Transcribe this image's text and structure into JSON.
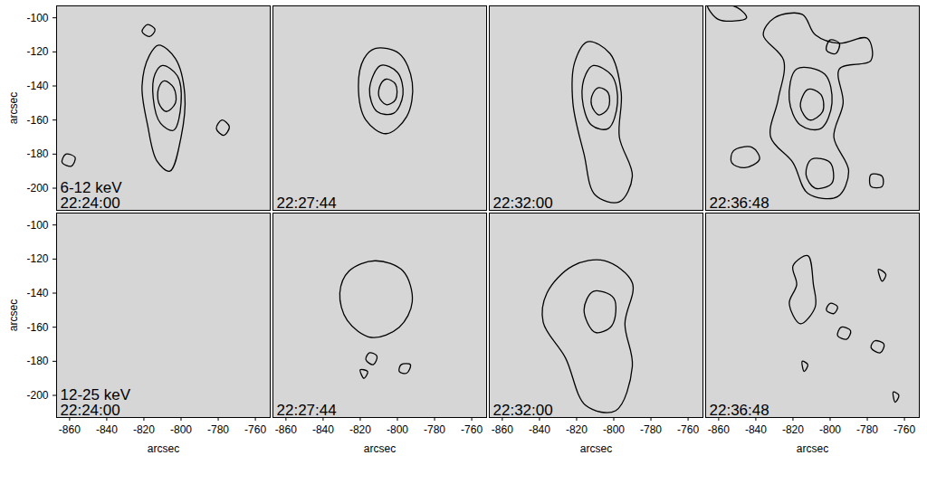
{
  "chart_data": [
    {
      "type": "contour",
      "annotations": [
        "6-12 keV",
        "22:24:00"
      ],
      "ylabel": "arcsec",
      "tick_labels": "y",
      "xlim": [
        -867,
        -752
      ],
      "ylim": [
        -213,
        -93
      ],
      "xticks": [
        -860,
        -840,
        -820,
        -800,
        -780,
        -760
      ],
      "yticks": [
        -100,
        -120,
        -140,
        -160,
        -180,
        -200
      ],
      "contours": [
        [
          [
            -812,
            -116
          ],
          [
            -803,
            -124
          ],
          [
            -798,
            -145
          ],
          [
            -800,
            -170
          ],
          [
            -806,
            -190
          ],
          [
            -813,
            -184
          ],
          [
            -818,
            -163
          ],
          [
            -821,
            -140
          ],
          [
            -817,
            -122
          ]
        ],
        [
          [
            -810,
            -128
          ],
          [
            -802,
            -134
          ],
          [
            -800,
            -150
          ],
          [
            -804,
            -166
          ],
          [
            -811,
            -162
          ],
          [
            -815,
            -147
          ],
          [
            -814,
            -133
          ]
        ],
        [
          [
            -809,
            -137
          ],
          [
            -804,
            -141
          ],
          [
            -803,
            -150
          ],
          [
            -808,
            -155
          ],
          [
            -812,
            -150
          ],
          [
            -812,
            -141
          ]
        ],
        [
          [
            -818,
            -104
          ],
          [
            -814,
            -107
          ],
          [
            -817,
            -111
          ],
          [
            -821,
            -108
          ]
        ],
        [
          [
            -778,
            -160
          ],
          [
            -774,
            -164
          ],
          [
            -777,
            -169
          ],
          [
            -781,
            -165
          ]
        ],
        [
          [
            -862,
            -180
          ],
          [
            -857,
            -182
          ],
          [
            -859,
            -187
          ],
          [
            -864,
            -185
          ]
        ]
      ]
    },
    {
      "type": "contour",
      "annotations": [
        "22:27:44"
      ],
      "tick_labels": false,
      "xlim": [
        -867,
        -752
      ],
      "ylim": [
        -213,
        -93
      ],
      "xticks": [
        -860,
        -840,
        -820,
        -800,
        -780,
        -760
      ],
      "yticks": [
        -100,
        -120,
        -140,
        -160,
        -180,
        -200
      ],
      "contours": [
        [
          [
            -812,
            -118
          ],
          [
            -799,
            -121
          ],
          [
            -792,
            -138
          ],
          [
            -795,
            -158
          ],
          [
            -806,
            -168
          ],
          [
            -817,
            -160
          ],
          [
            -821,
            -140
          ],
          [
            -818,
            -124
          ]
        ],
        [
          [
            -809,
            -128
          ],
          [
            -800,
            -132
          ],
          [
            -797,
            -145
          ],
          [
            -802,
            -156
          ],
          [
            -811,
            -155
          ],
          [
            -815,
            -142
          ]
        ],
        [
          [
            -806,
            -136
          ],
          [
            -801,
            -139
          ],
          [
            -801,
            -148
          ],
          [
            -806,
            -151
          ],
          [
            -810,
            -146
          ],
          [
            -809,
            -139
          ]
        ]
      ]
    },
    {
      "type": "contour",
      "annotations": [
        "22:32:00"
      ],
      "tick_labels": false,
      "xlim": [
        -867,
        -752
      ],
      "ylim": [
        -213,
        -93
      ],
      "xticks": [
        -860,
        -840,
        -820,
        -800,
        -780,
        -760
      ],
      "yticks": [
        -100,
        -120,
        -140,
        -160,
        -180,
        -200
      ],
      "contours": [
        [
          [
            -814,
            -114
          ],
          [
            -802,
            -121
          ],
          [
            -796,
            -144
          ],
          [
            -797,
            -170
          ],
          [
            -790,
            -193
          ],
          [
            -797,
            -208
          ],
          [
            -810,
            -204
          ],
          [
            -816,
            -180
          ],
          [
            -822,
            -150
          ],
          [
            -821,
            -126
          ]
        ],
        [
          [
            -811,
            -128
          ],
          [
            -801,
            -134
          ],
          [
            -798,
            -150
          ],
          [
            -803,
            -165
          ],
          [
            -812,
            -163
          ],
          [
            -817,
            -147
          ],
          [
            -815,
            -133
          ]
        ],
        [
          [
            -808,
            -141
          ],
          [
            -803,
            -144
          ],
          [
            -803,
            -153
          ],
          [
            -808,
            -157
          ],
          [
            -812,
            -151
          ],
          [
            -811,
            -144
          ]
        ]
      ]
    },
    {
      "type": "contour",
      "annotations": [
        "22:36:48"
      ],
      "tick_labels": false,
      "xlim": [
        -867,
        -752
      ],
      "ylim": [
        -213,
        -93
      ],
      "xticks": [
        -860,
        -840,
        -820,
        -800,
        -780,
        -760
      ],
      "yticks": [
        -100,
        -120,
        -140,
        -160,
        -180,
        -200
      ],
      "contours": [
        [
          [
            -830,
            -100
          ],
          [
            -815,
            -98
          ],
          [
            -808,
            -110
          ],
          [
            -795,
            -115
          ],
          [
            -780,
            -112
          ],
          [
            -778,
            -125
          ],
          [
            -795,
            -130
          ],
          [
            -793,
            -150
          ],
          [
            -798,
            -170
          ],
          [
            -790,
            -190
          ],
          [
            -796,
            -205
          ],
          [
            -812,
            -203
          ],
          [
            -820,
            -185
          ],
          [
            -832,
            -170
          ],
          [
            -828,
            -148
          ],
          [
            -825,
            -125
          ],
          [
            -836,
            -110
          ]
        ],
        [
          [
            -818,
            -130
          ],
          [
            -803,
            -133
          ],
          [
            -799,
            -150
          ],
          [
            -805,
            -165
          ],
          [
            -816,
            -163
          ],
          [
            -822,
            -148
          ]
        ],
        [
          [
            -812,
            -142
          ],
          [
            -805,
            -145
          ],
          [
            -804,
            -155
          ],
          [
            -811,
            -160
          ],
          [
            -816,
            -152
          ]
        ],
        [
          [
            -810,
            -183
          ],
          [
            -800,
            -185
          ],
          [
            -799,
            -197
          ],
          [
            -808,
            -200
          ],
          [
            -813,
            -192
          ]
        ],
        [
          [
            -800,
            -113
          ],
          [
            -795,
            -115
          ],
          [
            -797,
            -121
          ],
          [
            -802,
            -119
          ]
        ],
        [
          [
            -852,
            -178
          ],
          [
            -842,
            -176
          ],
          [
            -838,
            -183
          ],
          [
            -846,
            -188
          ],
          [
            -853,
            -185
          ]
        ],
        [
          [
            -778,
            -192
          ],
          [
            -772,
            -193
          ],
          [
            -772,
            -199
          ],
          [
            -778,
            -199
          ]
        ],
        [
          [
            -866,
            -92
          ],
          [
            -850,
            -94
          ],
          [
            -845,
            -100
          ],
          [
            -860,
            -101
          ]
        ]
      ]
    },
    {
      "type": "contour",
      "annotations": [
        "12-25 keV",
        "22:24:00"
      ],
      "xlabel": "arcsec",
      "ylabel": "arcsec",
      "xlim": [
        -867,
        -752
      ],
      "ylim": [
        -213,
        -93
      ],
      "xticks": [
        -860,
        -840,
        -820,
        -800,
        -780,
        -760
      ],
      "yticks": [
        -100,
        -120,
        -140,
        -160,
        -180,
        -200
      ],
      "contours": []
    },
    {
      "type": "contour",
      "annotations": [
        "22:27:44"
      ],
      "xlabel": "arcsec",
      "tick_labels": "x",
      "xlim": [
        -867,
        -752
      ],
      "ylim": [
        -213,
        -93
      ],
      "xticks": [
        -860,
        -840,
        -820,
        -800,
        -780,
        -760
      ],
      "yticks": [
        -100,
        -120,
        -140,
        -160,
        -180,
        -200
      ],
      "contours": [
        [
          [
            -826,
            -127
          ],
          [
            -812,
            -121
          ],
          [
            -797,
            -127
          ],
          [
            -792,
            -145
          ],
          [
            -799,
            -160
          ],
          [
            -814,
            -166
          ],
          [
            -827,
            -156
          ],
          [
            -831,
            -140
          ]
        ],
        [
          [
            -815,
            -175
          ],
          [
            -811,
            -177
          ],
          [
            -813,
            -182
          ],
          [
            -817,
            -179
          ]
        ],
        [
          [
            -798,
            -182
          ],
          [
            -793,
            -182
          ],
          [
            -795,
            -187
          ],
          [
            -799,
            -186
          ]
        ],
        [
          [
            -820,
            -185
          ],
          [
            -816,
            -186
          ],
          [
            -818,
            -190
          ]
        ]
      ]
    },
    {
      "type": "contour",
      "annotations": [
        "22:32:00"
      ],
      "xlabel": "arcsec",
      "tick_labels": "x",
      "xlim": [
        -867,
        -752
      ],
      "ylim": [
        -213,
        -93
      ],
      "xticks": [
        -860,
        -840,
        -820,
        -800,
        -780,
        -760
      ],
      "yticks": [
        -100,
        -120,
        -140,
        -160,
        -180,
        -200
      ],
      "contours": [
        [
          [
            -836,
            -140
          ],
          [
            -822,
            -124
          ],
          [
            -805,
            -121
          ],
          [
            -790,
            -134
          ],
          [
            -794,
            -158
          ],
          [
            -790,
            -183
          ],
          [
            -799,
            -209
          ],
          [
            -815,
            -206
          ],
          [
            -826,
            -178
          ],
          [
            -838,
            -157
          ]
        ],
        [
          [
            -811,
            -139
          ],
          [
            -800,
            -143
          ],
          [
            -801,
            -159
          ],
          [
            -810,
            -163
          ],
          [
            -816,
            -150
          ]
        ]
      ]
    },
    {
      "type": "contour",
      "annotations": [
        "22:36:48"
      ],
      "xlabel": "arcsec",
      "tick_labels": "x",
      "xlim": [
        -867,
        -752
      ],
      "ylim": [
        -213,
        -93
      ],
      "xticks": [
        -860,
        -840,
        -820,
        -800,
        -780,
        -760
      ],
      "yticks": [
        -100,
        -120,
        -140,
        -160,
        -180,
        -200
      ],
      "contours": [
        [
          [
            -820,
            -124
          ],
          [
            -812,
            -118
          ],
          [
            -809,
            -135
          ],
          [
            -808,
            -148
          ],
          [
            -816,
            -158
          ],
          [
            -822,
            -146
          ],
          [
            -818,
            -135
          ]
        ],
        [
          [
            -800,
            -146
          ],
          [
            -796,
            -148
          ],
          [
            -798,
            -152
          ],
          [
            -802,
            -150
          ]
        ],
        [
          [
            -794,
            -160
          ],
          [
            -789,
            -162
          ],
          [
            -791,
            -167
          ],
          [
            -796,
            -165
          ]
        ],
        [
          [
            -776,
            -168
          ],
          [
            -771,
            -170
          ],
          [
            -773,
            -175
          ],
          [
            -778,
            -172
          ]
        ],
        [
          [
            -774,
            -126
          ],
          [
            -770,
            -129
          ],
          [
            -772,
            -133
          ]
        ],
        [
          [
            -815,
            -180
          ],
          [
            -812,
            -182
          ],
          [
            -814,
            -186
          ]
        ],
        [
          [
            -766,
            -198
          ],
          [
            -763,
            -200
          ],
          [
            -765,
            -204
          ]
        ]
      ]
    }
  ]
}
